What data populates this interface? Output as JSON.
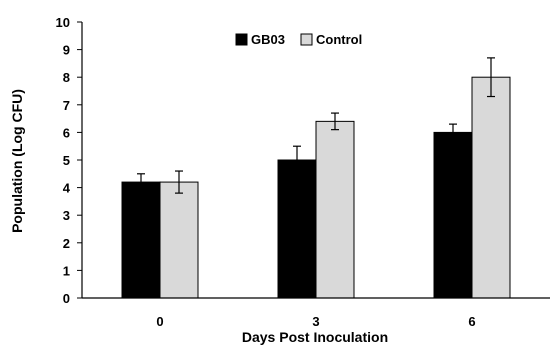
{
  "chart_data": {
    "type": "bar",
    "title": "",
    "xlabel": "Days Post Inoculation",
    "ylabel": "Population (Log CFU)",
    "categories": [
      "0",
      "3",
      "6"
    ],
    "ylim": [
      0,
      10
    ],
    "yticks": [
      0,
      1,
      2,
      3,
      4,
      5,
      6,
      7,
      8,
      9,
      10
    ],
    "grid": false,
    "legend_position": "top-center",
    "series": [
      {
        "name": "GB03",
        "color": "#000000",
        "values": [
          4.2,
          5.0,
          6.0
        ],
        "errors": [
          0.3,
          0.5,
          0.3
        ]
      },
      {
        "name": "Control",
        "color": "#d9d9d9",
        "values": [
          4.2,
          6.4,
          8.0
        ],
        "errors": [
          0.4,
          0.3,
          0.7
        ]
      }
    ]
  }
}
